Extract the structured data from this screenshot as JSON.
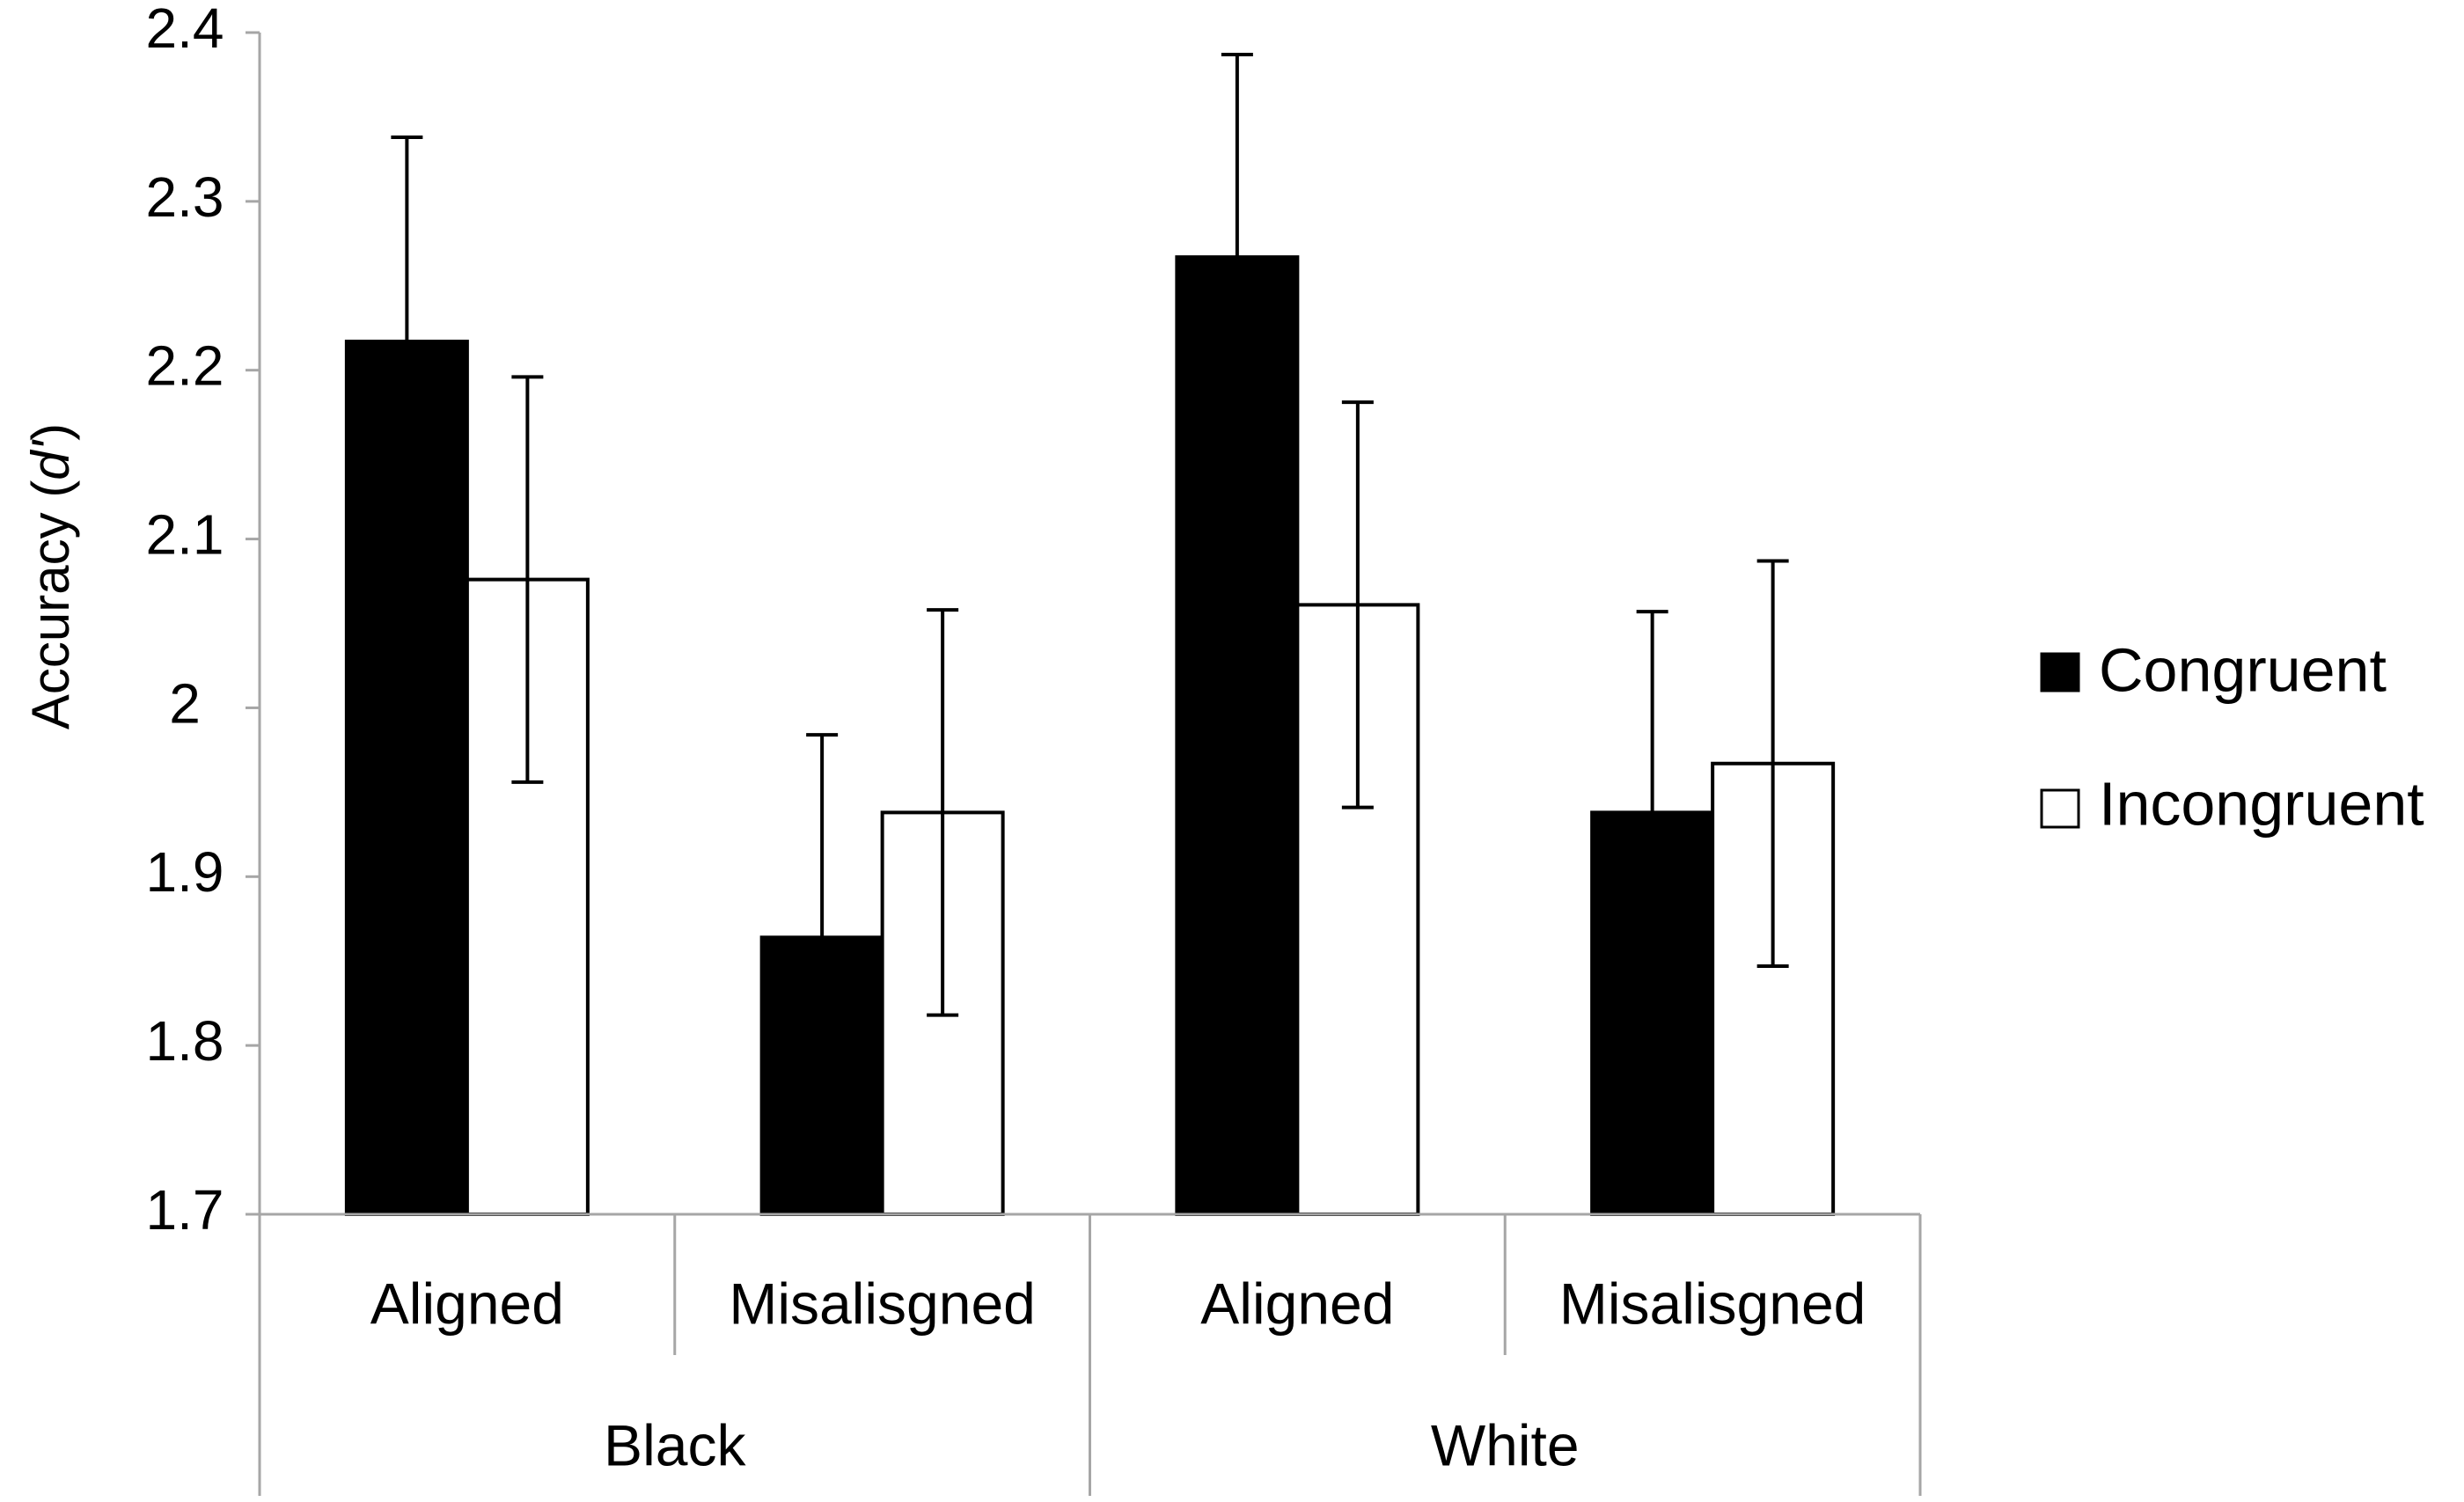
{
  "chart_data": {
    "type": "bar",
    "groups": [
      {
        "label": "Black",
        "categories": [
          "Aligned",
          "Misalisgned"
        ]
      },
      {
        "label": "White",
        "categories": [
          "Aligned",
          "Misalisgned"
        ]
      }
    ],
    "categories": [
      "Aligned",
      "Misalisgned",
      "Aligned",
      "Misalisgned"
    ],
    "series": [
      {
        "name": "Congruent",
        "color": "#000000",
        "values": [
          2.217,
          1.864,
          2.267,
          1.938
        ],
        "error": [
          0.121,
          0.12,
          0.12,
          0.119
        ]
      },
      {
        "name": "Incongruent",
        "color": "#ffffff",
        "values": [
          2.076,
          1.938,
          2.061,
          1.967
        ],
        "error": [
          0.12,
          0.12,
          0.12,
          0.12
        ]
      }
    ],
    "ylabel_main": "Accuracy (",
    "ylabel_italic": "d'",
    "ylabel_close": ")",
    "ylim": [
      1.7,
      2.4
    ],
    "yticks": [
      "1.7",
      "1.8",
      "1.9",
      "2",
      "2.1",
      "2.2",
      "2.3",
      "2.4"
    ],
    "grid": false,
    "legend_position": "right"
  }
}
